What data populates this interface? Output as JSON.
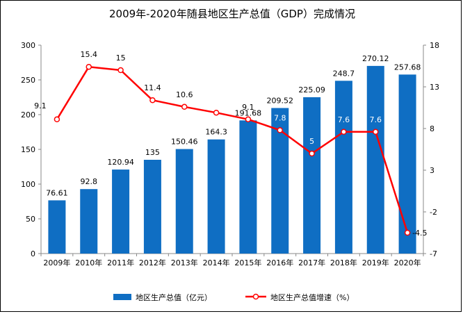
{
  "chart_data": {
    "type": "bar+line",
    "title": "2009年-2020年随县地区生产总值（GDP）完成情况",
    "categories": [
      "2009年",
      "2010年",
      "2011年",
      "2012年",
      "2013年",
      "2014年",
      "2015年",
      "2016年",
      "2017年",
      "2018年",
      "2019年",
      "2020年"
    ],
    "series": [
      {
        "name": "地区生产总值（亿元）",
        "type": "bar",
        "axis": "left",
        "color": "#0F6EC3",
        "values": [
          76.61,
          92.8,
          120.94,
          135,
          150.46,
          164.3,
          191.68,
          209.52,
          225.09,
          248.7,
          270.12,
          257.68
        ],
        "labels": [
          "76.61",
          "92.8",
          "120.94",
          "135",
          "150.46",
          "164.3",
          "191.68",
          "209.52",
          "225.09",
          "248.7",
          "270.12",
          "257.68"
        ]
      },
      {
        "name": "地区生产总值增速（%）",
        "type": "line",
        "axis": "right",
        "color": "#FF0000",
        "values": [
          9.1,
          15.4,
          15,
          11.4,
          10.6,
          9.9,
          9.1,
          7.8,
          5,
          7.6,
          7.6,
          -4.5
        ],
        "labels": [
          "9.1",
          "15.4",
          "15",
          "11.4",
          "10.6",
          "",
          "9.1",
          "7.8",
          "5",
          "7.6",
          "7.6",
          "-4.5"
        ]
      }
    ],
    "y_left": {
      "min": 0,
      "max": 300,
      "ticks": [
        "0",
        "50",
        "100",
        "150",
        "200",
        "250",
        "300"
      ]
    },
    "y_right": {
      "min": -7,
      "max": 18,
      "ticks": [
        "-7",
        "-2",
        "3",
        "8",
        "13",
        "18"
      ]
    },
    "grid": false,
    "legend_position": "bottom"
  }
}
